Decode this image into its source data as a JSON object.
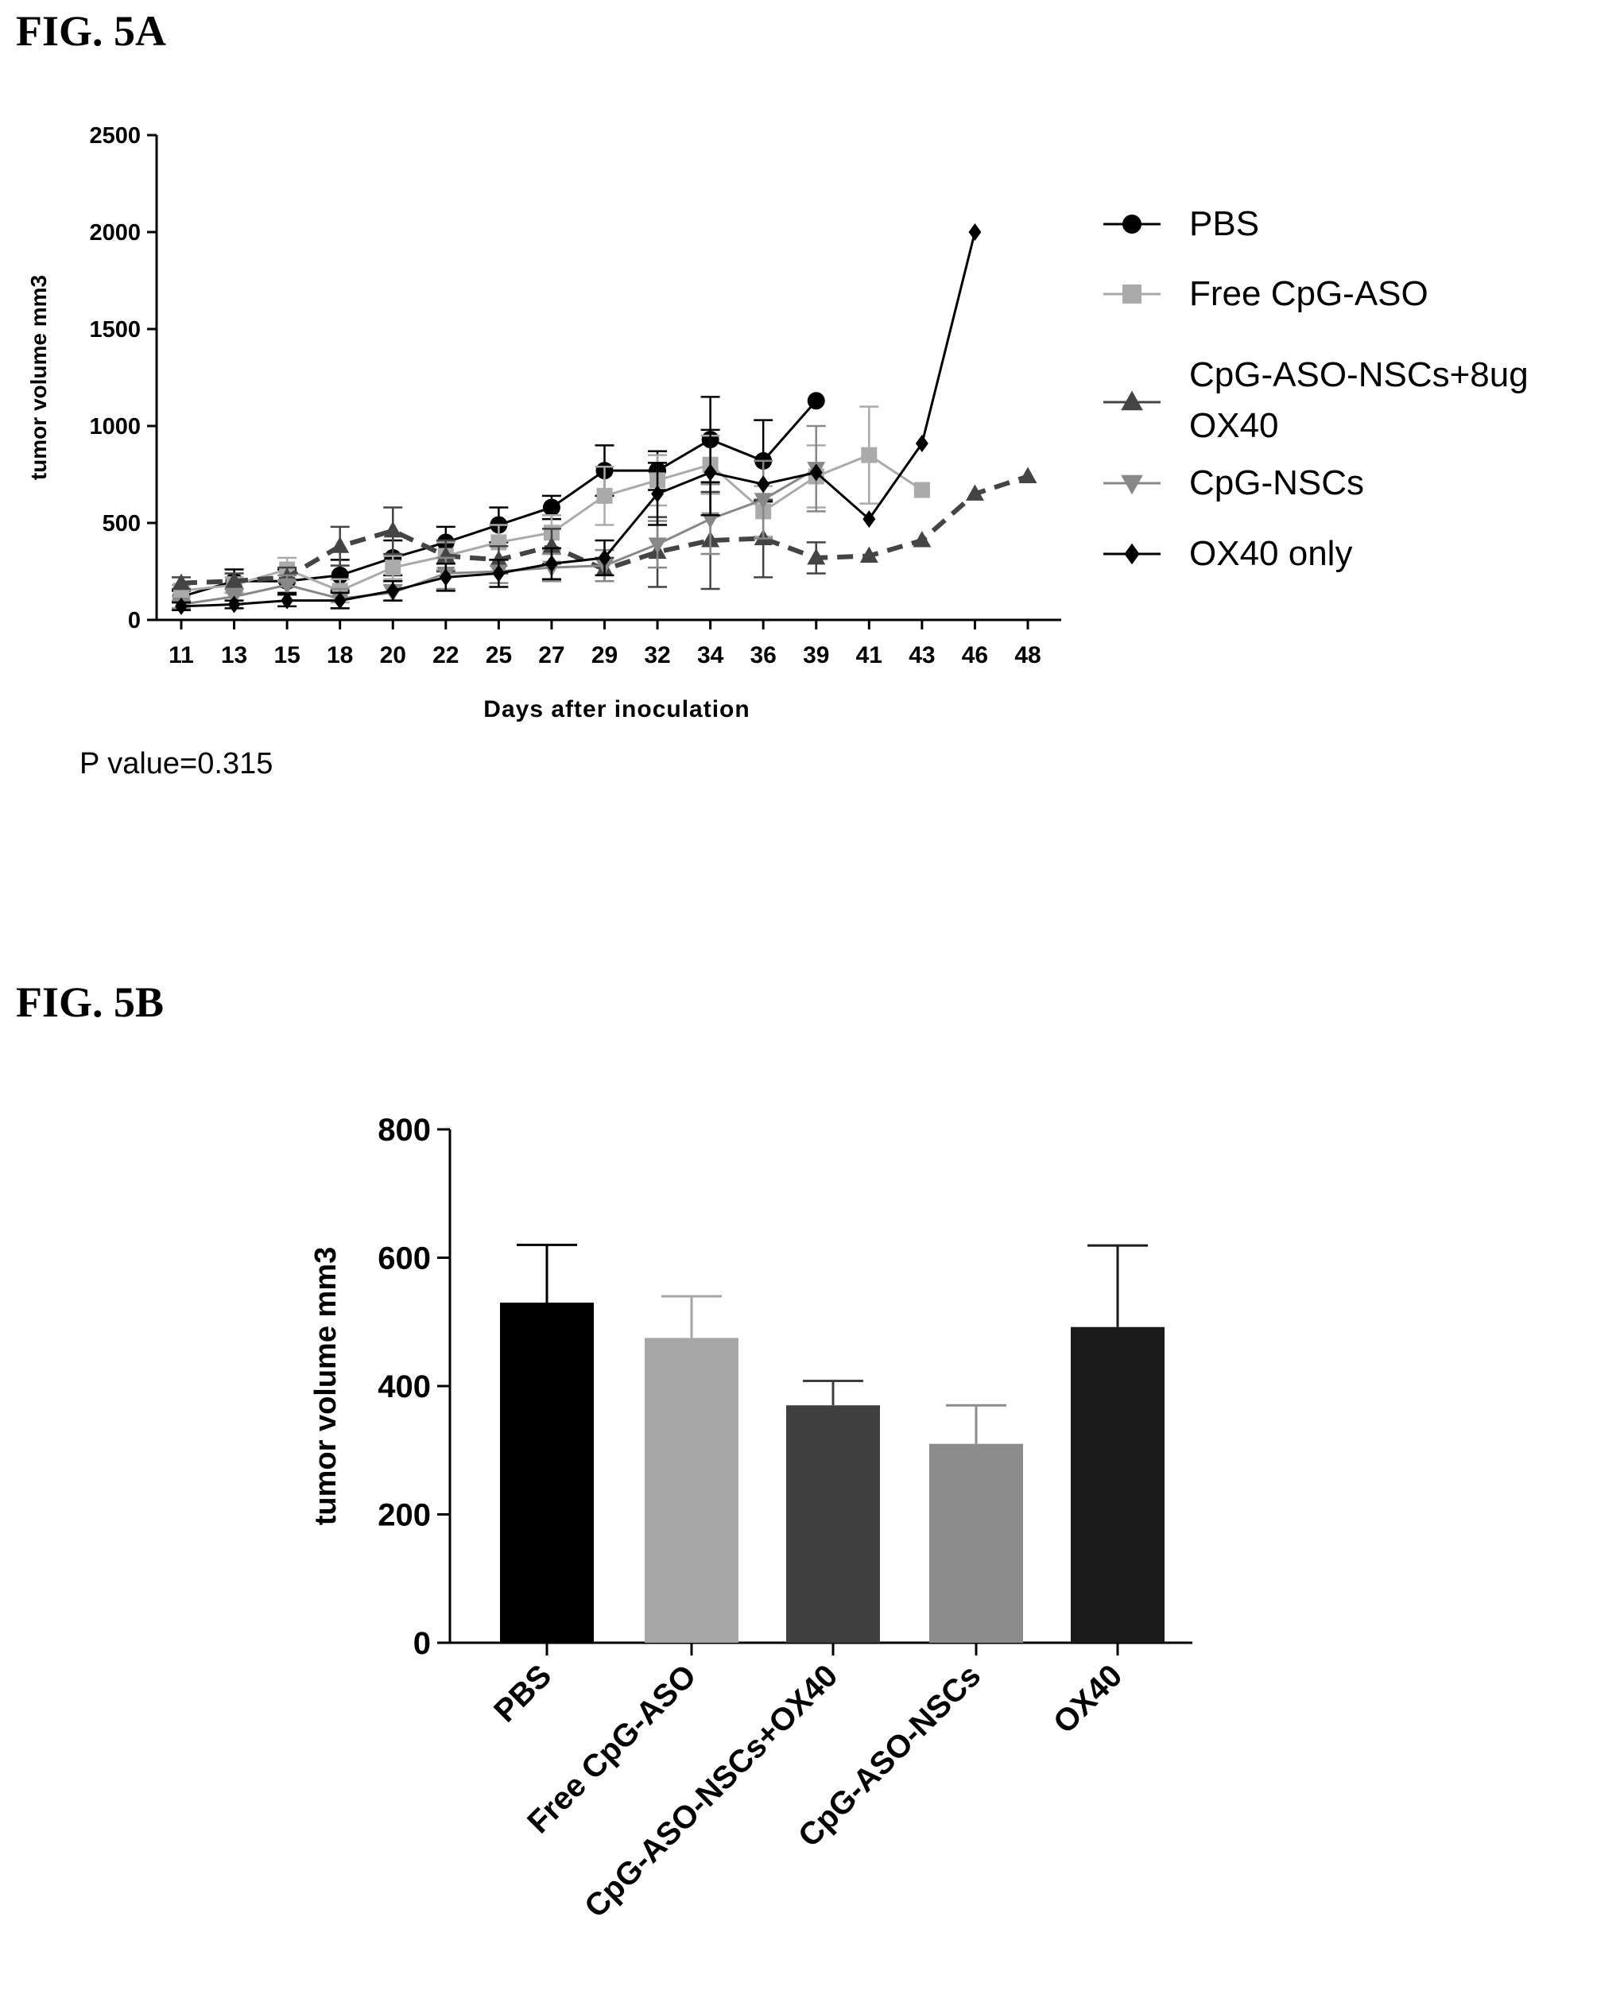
{
  "fig_a_label": "FIG. 5A",
  "fig_b_label": "FIG. 5B",
  "p_value_text": "P value=0.315",
  "chart_data": [
    {
      "type": "line",
      "ylabel": "tumor volume mm3",
      "xlabel": "Days after inoculation",
      "categories": [
        "11",
        "13",
        "15",
        "18",
        "20",
        "22",
        "25",
        "27",
        "29",
        "32",
        "34",
        "36",
        "39",
        "41",
        "43",
        "46",
        "48"
      ],
      "ylim": [
        0,
        2500
      ],
      "yticks": [
        0,
        500,
        1000,
        1500,
        2000,
        2500
      ],
      "legend_position": "right",
      "legend_lines": [
        [
          "PBS"
        ],
        [
          "Free CpG-ASO"
        ],
        [
          "CpG-ASO-NSCs+8ug",
          "OX40"
        ],
        [
          "CpG-NSCs"
        ],
        [
          "OX40 only"
        ]
      ],
      "series": [
        {
          "name": "PBS",
          "marker": "circle",
          "color": "#000000",
          "dashed": false,
          "values": [
            120,
            200,
            200,
            230,
            320,
            400,
            490,
            580,
            770,
            770,
            930,
            820,
            1130,
            null,
            null,
            null,
            null
          ],
          "errors": [
            30,
            60,
            60,
            80,
            90,
            80,
            90,
            60,
            130,
            100,
            220,
            210,
            0,
            null,
            null,
            null,
            null
          ]
        },
        {
          "name": "Free CpG-ASO",
          "marker": "square",
          "color": "#aaaaaa",
          "dashed": false,
          "values": [
            150,
            180,
            260,
            150,
            270,
            330,
            400,
            450,
            640,
            720,
            800,
            560,
            740,
            850,
            670,
            null,
            null
          ],
          "errors": [
            30,
            40,
            60,
            60,
            60,
            70,
            90,
            90,
            150,
            130,
            150,
            130,
            160,
            250,
            0,
            null,
            null
          ]
        },
        {
          "name": "CpG-ASO-NSCs+8ug OX40",
          "marker": "triangle-up",
          "color": "#444444",
          "dashed": true,
          "values": [
            190,
            200,
            220,
            380,
            460,
            330,
            310,
            380,
            260,
            350,
            410,
            420,
            320,
            330,
            410,
            650,
            740
          ],
          "errors": [
            30,
            40,
            50,
            100,
            120,
            80,
            70,
            90,
            60,
            180,
            250,
            200,
            80,
            0,
            0,
            0,
            0
          ]
        },
        {
          "name": "CpG-NSCs",
          "marker": "triangle-down",
          "color": "#888888",
          "dashed": false,
          "values": [
            80,
            120,
            180,
            110,
            140,
            240,
            250,
            270,
            280,
            390,
            520,
            620,
            780,
            null,
            null,
            null,
            null
          ],
          "errors": [
            20,
            40,
            50,
            50,
            40,
            80,
            60,
            70,
            80,
            120,
            180,
            200,
            220,
            null,
            null,
            null,
            null
          ]
        },
        {
          "name": "OX40 only",
          "marker": "diamond",
          "color": "#000000",
          "dashed": false,
          "values": [
            70,
            80,
            100,
            100,
            150,
            220,
            240,
            290,
            320,
            650,
            760,
            700,
            760,
            520,
            910,
            2000,
            null
          ],
          "errors": [
            20,
            20,
            30,
            40,
            50,
            70,
            70,
            80,
            90,
            160,
            220,
            0,
            0,
            0,
            0,
            0,
            null
          ]
        }
      ]
    },
    {
      "type": "bar",
      "ylabel": "tumor volume mm3",
      "categories": [
        "PBS",
        "Free CpG-ASO",
        "CpG-ASO-NSCs+OX40",
        "CpG-ASO-NSCs",
        "OX40"
      ],
      "values": [
        530,
        475,
        370,
        310,
        492
      ],
      "errors": [
        90,
        65,
        38,
        60,
        127
      ],
      "colors": [
        "#000000",
        "#a6a6a6",
        "#3f3f3f",
        "#8c8c8c",
        "#1a1a1a"
      ],
      "ylim": [
        0,
        800
      ],
      "yticks": [
        0,
        200,
        400,
        600,
        800
      ]
    }
  ]
}
